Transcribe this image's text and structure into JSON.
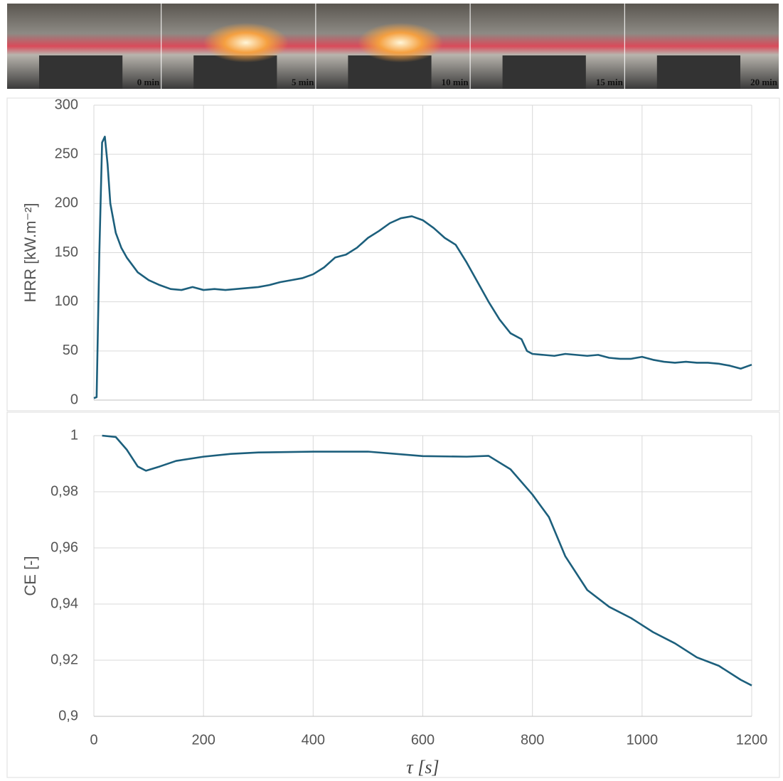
{
  "photos": {
    "labels": [
      "0 min",
      "5 min",
      "10 min",
      "15 min",
      "20 min"
    ]
  },
  "chart_data": [
    {
      "type": "line",
      "ylabel": "HRR [kW.m⁻²]",
      "xlim": [
        0,
        1200
      ],
      "xticks": [
        0,
        200,
        400,
        600,
        800,
        1000,
        1200
      ],
      "ylim": [
        0,
        300
      ],
      "yticks": [
        0,
        50,
        100,
        150,
        200,
        250,
        300
      ],
      "grid": true,
      "series": [
        {
          "color": "#1c5f7c",
          "x": [
            0,
            5,
            10,
            15,
            20,
            25,
            30,
            40,
            50,
            60,
            80,
            100,
            120,
            140,
            160,
            180,
            200,
            220,
            240,
            260,
            280,
            300,
            320,
            340,
            360,
            380,
            400,
            420,
            440,
            460,
            480,
            500,
            520,
            540,
            560,
            580,
            600,
            620,
            640,
            660,
            680,
            700,
            720,
            740,
            760,
            780,
            790,
            800,
            820,
            840,
            860,
            880,
            900,
            920,
            940,
            960,
            980,
            1000,
            1020,
            1040,
            1060,
            1080,
            1100,
            1120,
            1140,
            1160,
            1180,
            1200
          ],
          "values": [
            2,
            3,
            150,
            262,
            268,
            240,
            200,
            170,
            155,
            145,
            130,
            122,
            117,
            113,
            112,
            115,
            112,
            113,
            112,
            113,
            114,
            115,
            117,
            120,
            122,
            124,
            128,
            135,
            145,
            148,
            155,
            165,
            172,
            180,
            185,
            187,
            183,
            175,
            165,
            158,
            140,
            120,
            100,
            82,
            68,
            62,
            50,
            47,
            46,
            45,
            47,
            46,
            45,
            46,
            43,
            42,
            42,
            44,
            41,
            39,
            38,
            39,
            38,
            38,
            37,
            35,
            32,
            36
          ]
        }
      ]
    },
    {
      "type": "line",
      "ylabel": "CE [-]",
      "xlabel": "τ [s]",
      "xlim": [
        0,
        1200
      ],
      "xticks": [
        0,
        200,
        400,
        600,
        800,
        1000,
        1200
      ],
      "ylim": [
        0.9,
        1
      ],
      "yticks": [
        {
          "value": 0.9,
          "label": "0,9"
        },
        {
          "value": 0.92,
          "label": "0,92"
        },
        {
          "value": 0.94,
          "label": "0,94"
        },
        {
          "value": 0.96,
          "label": "0,96"
        },
        {
          "value": 0.98,
          "label": "0,98"
        },
        1
      ],
      "grid": true,
      "series": [
        {
          "color": "#1c5f7c",
          "x": [
            15,
            40,
            60,
            80,
            95,
            120,
            150,
            200,
            250,
            300,
            400,
            500,
            600,
            680,
            720,
            760,
            800,
            830,
            860,
            900,
            940,
            980,
            1020,
            1060,
            1100,
            1140,
            1180,
            1200
          ],
          "values": [
            1,
            0.9995,
            0.995,
            0.989,
            0.9875,
            0.989,
            0.991,
            0.9925,
            0.9935,
            0.994,
            0.9943,
            0.9943,
            0.9927,
            0.9925,
            0.9928,
            0.988,
            0.979,
            0.971,
            0.957,
            0.945,
            0.939,
            0.935,
            0.93,
            0.926,
            0.921,
            0.918,
            0.913,
            0.911
          ]
        }
      ]
    }
  ]
}
